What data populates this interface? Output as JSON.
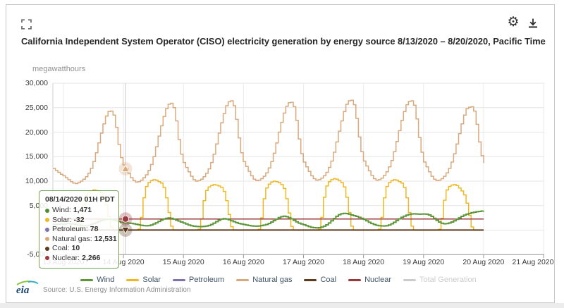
{
  "header": {
    "title": "California Independent System Operator (CISO) electricity generation by energy source 8/13/2020 – 8/20/2020, Pacific Time",
    "fullscreen_icon": "expand-corners",
    "gear_icon": "⚙",
    "download_icon": "download-arrow"
  },
  "chart_data": {
    "type": "line",
    "unit_label": "megawatthours",
    "ylabel": "megawatthours",
    "ylim": [
      -5000,
      30000
    ],
    "grid": true,
    "legend_position": "bottom",
    "y_ticks": [
      {
        "value": 30000,
        "label": "30,000"
      },
      {
        "value": 25000,
        "label": "25,000"
      },
      {
        "value": 20000,
        "label": "20,000"
      },
      {
        "value": 15000,
        "label": "15,000"
      },
      {
        "value": 10000,
        "label": "10,000"
      },
      {
        "value": 5000,
        "label": "5,000"
      },
      {
        "value": 0,
        "label": "0"
      },
      {
        "value": -5000,
        "label": "-5,000"
      }
    ],
    "x_ticks": [
      "13 Aug 2020",
      "14 Aug 2020",
      "15 Aug 2020",
      "16 Aug 2020",
      "17 Aug 2020",
      "18 Aug 2020",
      "19 Aug 2020",
      "20 Aug 2020",
      "21 Aug 2020"
    ],
    "x_is_hourly": true,
    "x_start": "12 Aug 2020 20H",
    "x_end": "20 Aug 2020 00H",
    "series": [
      {
        "name": "Natural gas",
        "color": "#d8a97d",
        "width": 1.5,
        "values": [
          12600,
          12200,
          11800,
          11400,
          11100,
          10700,
          10300,
          9900,
          9600,
          9500,
          9700,
          10000,
          10400,
          10900,
          11600,
          12600,
          14000,
          15800,
          17800,
          19800,
          21700,
          23300,
          24200,
          24300,
          23500,
          21000,
          17500,
          14800,
          13300,
          12531,
          11600,
          10700,
          10100,
          9800,
          9900,
          10200,
          10700,
          11300,
          12200,
          13400,
          15000,
          17000,
          19200,
          21300,
          23200,
          24800,
          25700,
          25900,
          25000,
          22300,
          18500,
          15500,
          13800,
          12800,
          11900,
          11000,
          10300,
          10000,
          10100,
          10400,
          10900,
          11600,
          12500,
          13800,
          15500,
          17600,
          19800,
          21900,
          23800,
          25400,
          26200,
          26400,
          25400,
          22600,
          18800,
          15800,
          14000,
          13000,
          12000,
          11100,
          10400,
          10100,
          10200,
          10500,
          11000,
          11700,
          12700,
          14000,
          15700,
          17800,
          20000,
          22000,
          23900,
          25300,
          26000,
          26100,
          25200,
          22400,
          18600,
          15600,
          13900,
          12900,
          12000,
          11100,
          10500,
          10200,
          10300,
          10600,
          11100,
          11800,
          12800,
          14100,
          15900,
          18000,
          20200,
          22300,
          24200,
          25700,
          26400,
          26500,
          25600,
          22800,
          19000,
          16000,
          14100,
          13100,
          12100,
          11200,
          10500,
          10200,
          10300,
          10600,
          11200,
          11900,
          12900,
          14200,
          16000,
          18100,
          20300,
          22400,
          24200,
          25600,
          26300,
          26400,
          25500,
          22700,
          18900,
          15900,
          13900,
          12900,
          11900,
          11000,
          10400,
          10100,
          10200,
          10500,
          11000,
          11700,
          12600,
          13900,
          15600,
          17600,
          19700,
          21700,
          23500,
          24800,
          25100,
          25200,
          24300,
          21600,
          18000,
          15200,
          13700
        ]
      },
      {
        "name": "Solar",
        "color": "#eeb723",
        "width": 1.5,
        "values": [
          -20,
          -25,
          -28,
          -30,
          -30,
          -32,
          -33,
          -33,
          -34,
          -30,
          150,
          2000,
          5200,
          7000,
          7700,
          8000,
          8200,
          8100,
          7900,
          7600,
          6900,
          5200,
          2800,
          600,
          -20,
          -28,
          -30,
          -30,
          -30,
          -32,
          -33,
          -33,
          -34,
          -30,
          200,
          2600,
          6600,
          8900,
          9700,
          10100,
          10300,
          10200,
          9900,
          9600,
          8700,
          6600,
          3600,
          800,
          -20,
          -28,
          -30,
          -30,
          -30,
          -32,
          -33,
          -33,
          -34,
          -30,
          180,
          2300,
          6000,
          8100,
          8800,
          9100,
          9300,
          9200,
          9000,
          8700,
          7900,
          6000,
          3200,
          700,
          -20,
          -28,
          -30,
          -30,
          -30,
          -32,
          -33,
          -33,
          -34,
          -30,
          190,
          2500,
          6400,
          8600,
          9400,
          9800,
          10000,
          9900,
          9700,
          9300,
          8500,
          6400,
          3500,
          750,
          -20,
          -28,
          -30,
          -30,
          -30,
          -32,
          -33,
          -33,
          -34,
          -30,
          200,
          2600,
          6700,
          9000,
          9900,
          10300,
          10500,
          10400,
          10100,
          9700,
          8800,
          6700,
          3600,
          800,
          -20,
          -28,
          -30,
          -30,
          -30,
          -32,
          -33,
          -33,
          -34,
          -30,
          200,
          2600,
          6600,
          8900,
          9700,
          10100,
          10300,
          10200,
          9900,
          9600,
          8700,
          6600,
          3600,
          800,
          -20,
          -28,
          -30,
          -30,
          -30,
          -32,
          -33,
          -33,
          -34,
          -30,
          180,
          2400,
          6100,
          8200,
          8900,
          9200,
          9300,
          9100,
          8600,
          8000,
          7200,
          5500,
          3000,
          650,
          -20,
          -28,
          -30,
          -30,
          -30
        ]
      },
      {
        "name": "Petroleum",
        "color": "#7e74ac",
        "width": 1,
        "constant": 78
      },
      {
        "name": "Coal",
        "color": "#5e3a1d",
        "width": 2,
        "constant": 10
      },
      {
        "name": "Nuclear",
        "color": "#9b383e",
        "width": 1.5,
        "constant": 2266
      },
      {
        "name": "Wind",
        "color": "#5c9639",
        "width": 2,
        "values": [
          1150,
          1180,
          1200,
          1220,
          1200,
          1250,
          1300,
          1300,
          1250,
          1150,
          1050,
          950,
          900,
          900,
          1000,
          1150,
          1350,
          1550,
          1750,
          1950,
          2100,
          2200,
          2250,
          2200,
          2050,
          1900,
          1750,
          1600,
          1500,
          1471,
          1430,
          1380,
          1300,
          1200,
          1100,
          1000,
          920,
          880,
          920,
          1050,
          1250,
          1500,
          1780,
          2050,
          2280,
          2420,
          2480,
          2420,
          2250,
          2050,
          1850,
          1650,
          1450,
          1250,
          1050,
          900,
          800,
          750,
          720,
          720,
          760,
          820,
          950,
          1150,
          1420,
          1720,
          2020,
          2250,
          2350,
          2280,
          2120,
          1920,
          1720,
          1520,
          1350,
          1250,
          1150,
          1050,
          950,
          870,
          820,
          800,
          850,
          920,
          1020,
          1150,
          1350,
          1650,
          1950,
          2250,
          2550,
          2750,
          2850,
          2750,
          2550,
          2300,
          2000,
          1700,
          1420,
          1250,
          1100,
          900,
          720,
          580,
          500,
          470,
          500,
          600,
          800,
          1080,
          1450,
          1900,
          2380,
          2820,
          3150,
          3350,
          3420,
          3380,
          3250,
          3100,
          2950,
          2800,
          2600,
          2400,
          2200,
          1900,
          1600,
          1350,
          1150,
          1000,
          900,
          860,
          850,
          900,
          1050,
          1300,
          1600,
          1950,
          2300,
          2600,
          2850,
          3050,
          3200,
          3300,
          3320,
          3300,
          3250,
          3280,
          3300,
          3250,
          3100,
          2800,
          2400,
          2000,
          1650,
          1400,
          1300,
          1320,
          1450,
          1650,
          1900,
          2200,
          2500,
          2800,
          3050,
          3250,
          3400,
          3550,
          3650,
          3750,
          3820,
          3880,
          3900
        ]
      },
      {
        "name": "Total Generation",
        "color": "#cccccc",
        "width": 1.5,
        "disabled": true
      }
    ]
  },
  "tooltip": {
    "header": "08/14/2020 01H PDT",
    "hover_index": 29,
    "rows": [
      {
        "label": "Wind",
        "value": "1,471",
        "color": "#4e8f35"
      },
      {
        "label": "Solar",
        "value": "-32",
        "color": "#eeb723"
      },
      {
        "label": "Petroleum",
        "value": "78",
        "color": "#7e74ac"
      },
      {
        "label": "Natural gas",
        "value": "12,531",
        "color": "#d8a97d"
      },
      {
        "label": "Coal",
        "value": "10",
        "color": "#5e3a1d"
      },
      {
        "label": "Nuclear",
        "value": "2,266",
        "color": "#9b383e"
      }
    ],
    "markers": [
      {
        "series": "Natural gas",
        "value": 12531,
        "shape": "triangle"
      },
      {
        "series": "Nuclear",
        "value": 2266,
        "shape": "circle"
      },
      {
        "series": "Coal",
        "value": 10,
        "shape": "triangle-down"
      }
    ]
  },
  "legend": {
    "items": [
      {
        "label": "Wind",
        "color": "#5c9639",
        "disabled": false
      },
      {
        "label": "Solar",
        "color": "#eeb723",
        "disabled": false
      },
      {
        "label": "Petroleum",
        "color": "#7e74ac",
        "disabled": false
      },
      {
        "label": "Natural gas",
        "color": "#d8a97d",
        "disabled": false
      },
      {
        "label": "Coal",
        "color": "#5e3a1d",
        "disabled": false
      },
      {
        "label": "Nuclear",
        "color": "#9b383e",
        "disabled": false
      },
      {
        "label": "Total Generation",
        "color": "#cccccc",
        "disabled": true
      }
    ]
  },
  "footer": {
    "logo_text": "eia",
    "source": "Source: U.S. Energy Information Administration"
  }
}
